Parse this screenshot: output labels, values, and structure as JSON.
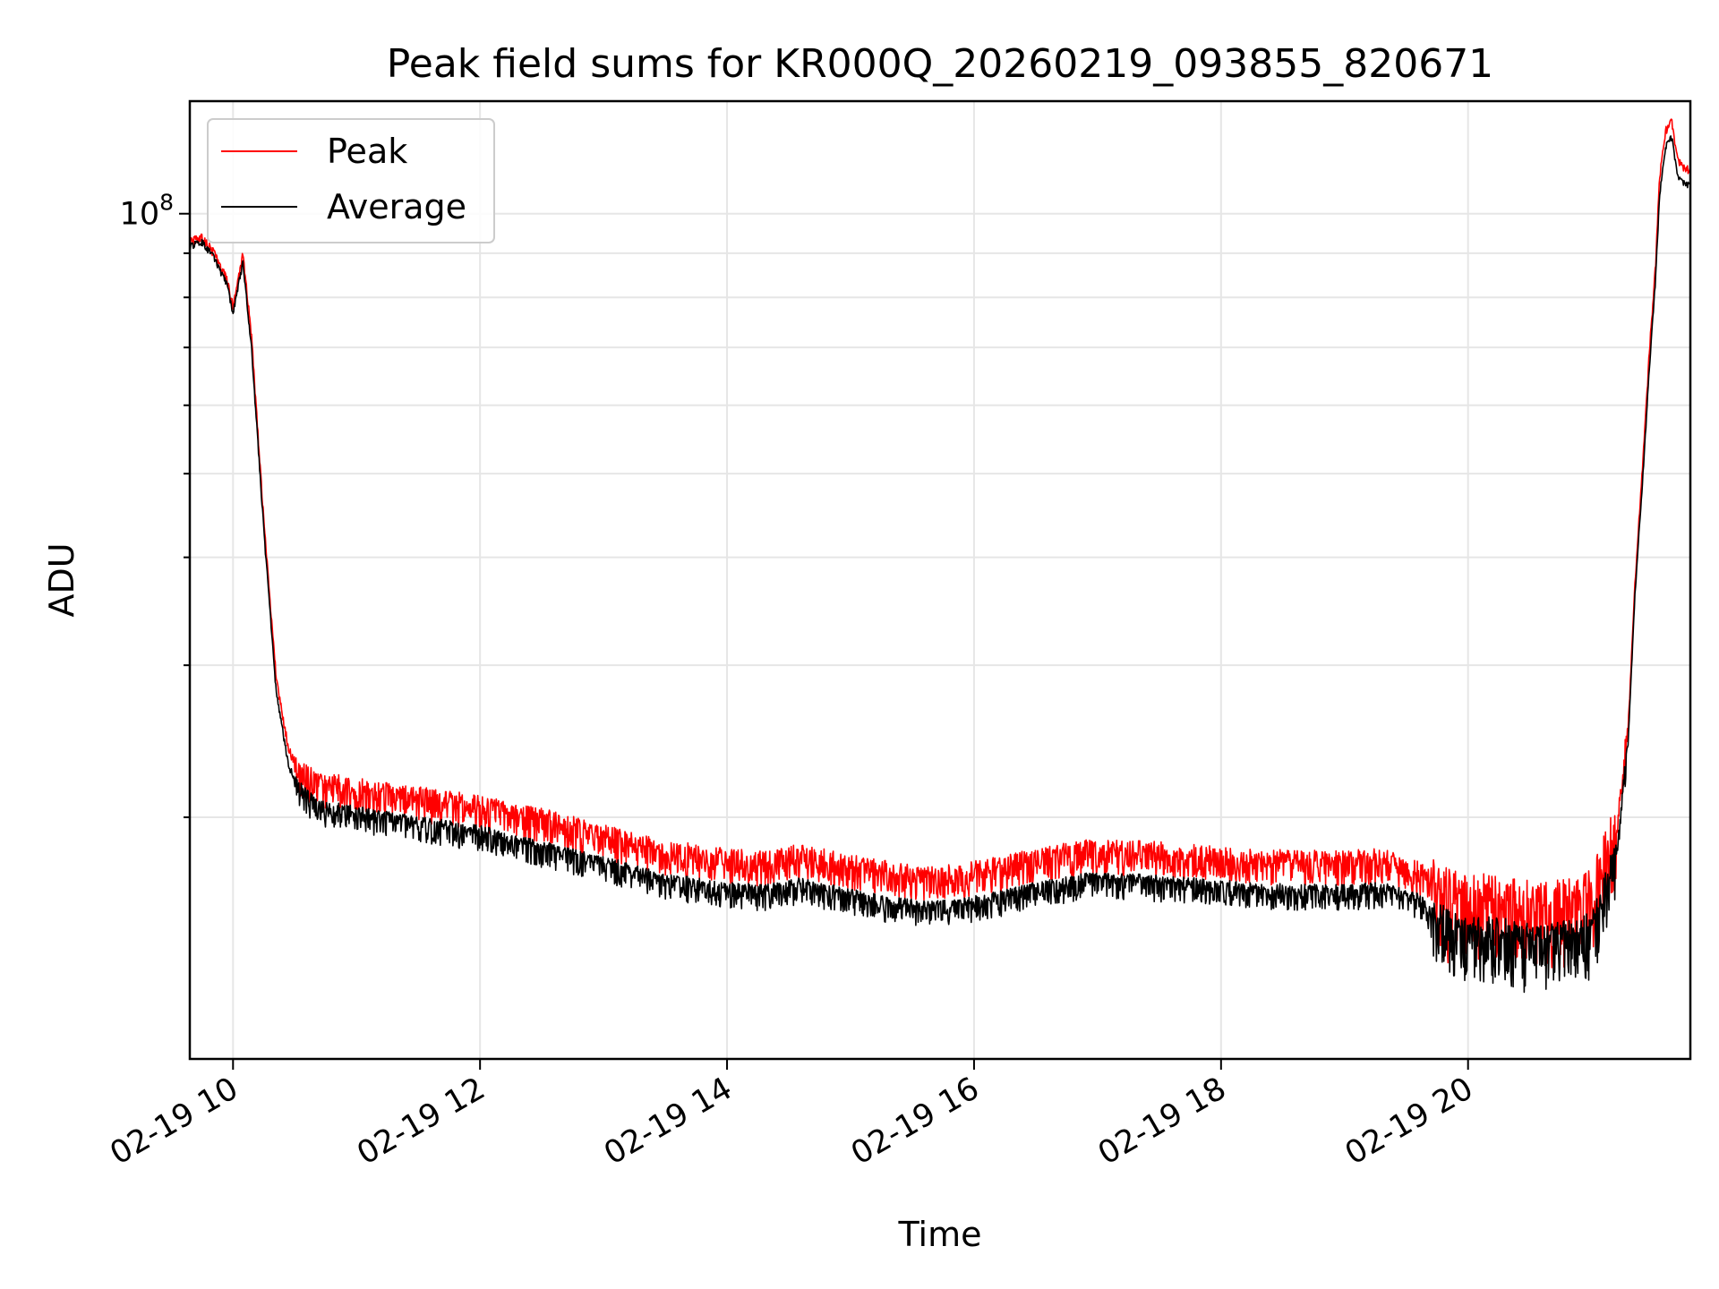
{
  "chart_data": {
    "type": "line",
    "title": "Peak field sums for KR000Q_20260219_093855_820671",
    "xlabel": "Time",
    "ylabel": "ADU",
    "yscale": "log",
    "xlim_hours": [
      9.65,
      21.8
    ],
    "ylim": [
      10500000.0,
      135000000.0
    ],
    "x_ticks": [
      {
        "value": 10,
        "label": "02-19 10"
      },
      {
        "value": 12,
        "label": "02-19 12"
      },
      {
        "value": 14,
        "label": "02-19 14"
      },
      {
        "value": 16,
        "label": "02-19 16"
      },
      {
        "value": 18,
        "label": "02-19 18"
      },
      {
        "value": 20,
        "label": "02-19 20"
      }
    ],
    "y_major_ticks": [
      {
        "value": 100000000,
        "base": "10",
        "exp": "8"
      }
    ],
    "y_minor_ticks": [
      20000000,
      30000000,
      40000000,
      50000000,
      60000000,
      70000000,
      80000000,
      90000000
    ],
    "grid": true,
    "legend_position": "upper-left",
    "series": [
      {
        "name": "Peak",
        "color": "#ff0000",
        "noise_up": 0.035,
        "noise_down": 0.06,
        "x": [
          9.65,
          9.75,
          9.8,
          9.85,
          9.95,
          10.0,
          10.03,
          10.08,
          10.15,
          10.25,
          10.35,
          10.45,
          10.55,
          10.65,
          10.75,
          11.0,
          11.5,
          12.0,
          12.5,
          13.0,
          13.5,
          14.0,
          14.3,
          14.6,
          15.0,
          15.3,
          15.6,
          15.9,
          16.2,
          16.5,
          16.9,
          17.2,
          17.5,
          17.8,
          18.2,
          18.6,
          19.0,
          19.3,
          19.6,
          19.75,
          19.85,
          20.0,
          20.2,
          20.4,
          20.6,
          20.8,
          21.0,
          21.1,
          21.2,
          21.3,
          21.35,
          21.42,
          21.47,
          21.52,
          21.55,
          21.6,
          21.65,
          21.7,
          21.8
        ],
        "values": [
          93000000,
          94000000,
          92000000,
          90000000,
          84000000,
          78000000,
          82000000,
          90000000,
          72000000,
          44000000,
          29000000,
          24000000,
          22500000,
          22000000,
          21800000,
          21500000,
          21000000,
          20500000,
          19800000,
          19000000,
          18200000,
          17800000,
          17700000,
          18000000,
          17500000,
          17200000,
          17000000,
          17100000,
          17400000,
          17800000,
          18200000,
          18200000,
          18100000,
          18000000,
          17800000,
          17700000,
          17700000,
          17800000,
          17200000,
          16500000,
          16000000,
          15800000,
          15900000,
          15600000,
          15500000,
          15700000,
          16000000,
          17500000,
          19000000,
          26000000,
          37000000,
          53000000,
          70000000,
          88000000,
          110000000,
          125000000,
          128000000,
          115000000,
          112000000
        ]
      },
      {
        "name": "Average",
        "color": "#000000",
        "noise_up": 0.02,
        "noise_down": 0.05,
        "x": [
          9.65,
          9.75,
          9.8,
          9.85,
          9.95,
          10.0,
          10.03,
          10.08,
          10.15,
          10.25,
          10.35,
          10.45,
          10.55,
          10.65,
          10.75,
          11.0,
          11.5,
          12.0,
          12.5,
          13.0,
          13.5,
          14.0,
          14.3,
          14.6,
          15.0,
          15.3,
          15.6,
          15.9,
          16.2,
          16.5,
          16.9,
          17.2,
          17.5,
          17.8,
          18.2,
          18.6,
          19.0,
          19.3,
          19.6,
          19.75,
          19.85,
          20.0,
          20.2,
          20.4,
          20.6,
          20.8,
          21.0,
          21.1,
          21.2,
          21.3,
          21.35,
          21.42,
          21.47,
          21.52,
          21.55,
          21.6,
          21.65,
          21.7,
          21.8
        ],
        "values": [
          92000000,
          93000000,
          91000000,
          89000000,
          83000000,
          77000000,
          81000000,
          88000000,
          70000000,
          43000000,
          28000000,
          23000000,
          21500000,
          20800000,
          20500000,
          20200000,
          19700000,
          19200000,
          18400000,
          17700000,
          16900000,
          16500000,
          16400000,
          16700000,
          16200000,
          15900000,
          15700000,
          15800000,
          16100000,
          16500000,
          16900000,
          16900000,
          16800000,
          16700000,
          16500000,
          16400000,
          16400000,
          16500000,
          16000000,
          15300000,
          14800000,
          14600000,
          14700000,
          14400000,
          14300000,
          14500000,
          14800000,
          16200000,
          18000000,
          25000000,
          36000000,
          51000000,
          67000000,
          85000000,
          105000000,
          120000000,
          123000000,
          110000000,
          108000000
        ]
      }
    ]
  }
}
